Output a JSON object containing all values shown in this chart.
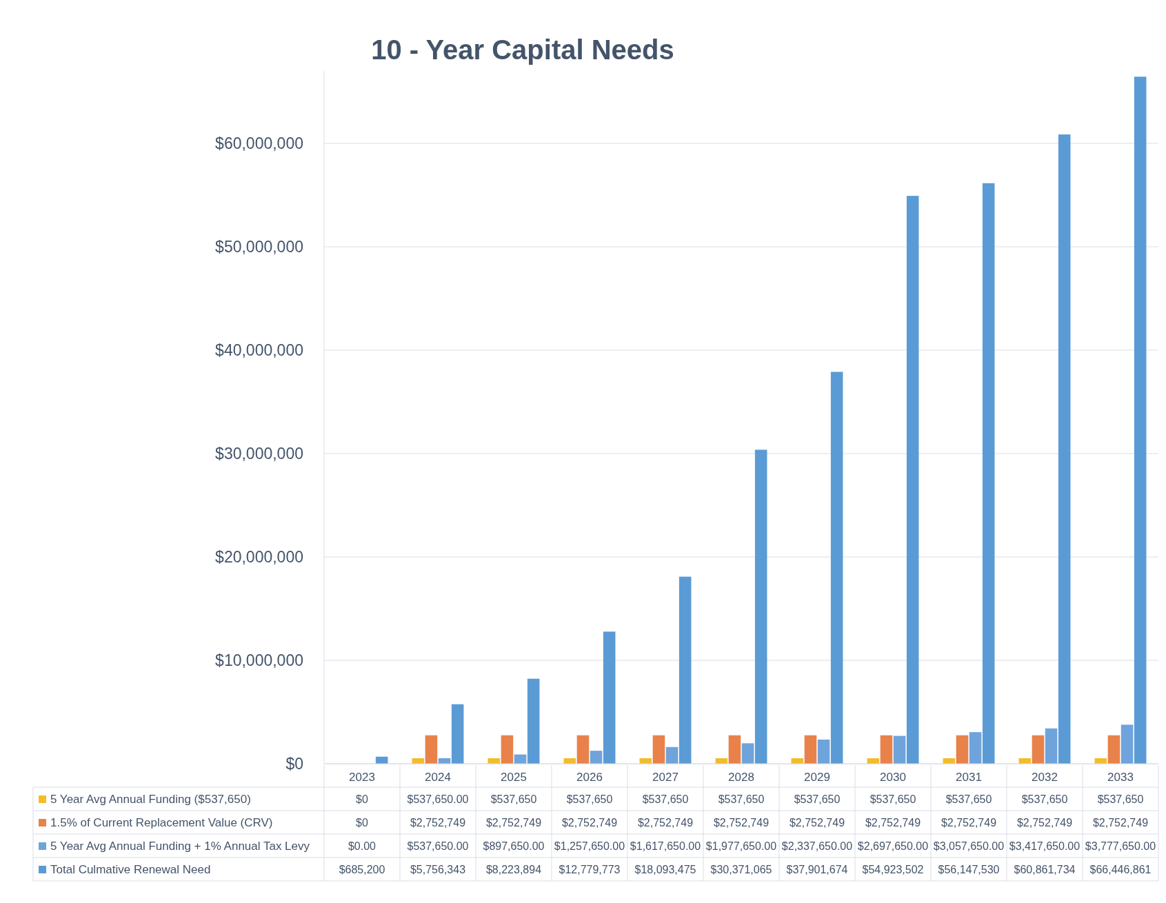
{
  "chart_data": {
    "type": "bar",
    "title": "10 - Year Capital Needs",
    "categories": [
      "2023",
      "2024",
      "2025",
      "2026",
      "2027",
      "2028",
      "2029",
      "2030",
      "2031",
      "2032",
      "2033"
    ],
    "series": [
      {
        "name": "5 Year Avg Annual Funding ($537,650)",
        "color": "#f2bd2c",
        "values": [
          0,
          537650,
          537650,
          537650,
          537650,
          537650,
          537650,
          537650,
          537650,
          537650,
          537650
        ],
        "value_labels": [
          "$0",
          "$537,650.00",
          "$537,650",
          "$537,650",
          "$537,650",
          "$537,650",
          "$537,650",
          "$537,650",
          "$537,650",
          "$537,650",
          "$537,650"
        ]
      },
      {
        "name": "1.5% of Current Replacement Value (CRV)",
        "color": "#e8824a",
        "values": [
          0,
          2752749,
          2752749,
          2752749,
          2752749,
          2752749,
          2752749,
          2752749,
          2752749,
          2752749,
          2752749
        ],
        "value_labels": [
          "$0",
          "$2,752,749",
          "$2,752,749",
          "$2,752,749",
          "$2,752,749",
          "$2,752,749",
          "$2,752,749",
          "$2,752,749",
          "$2,752,749",
          "$2,752,749",
          "$2,752,749"
        ]
      },
      {
        "name": "5 Year Avg Annual Funding + 1% Annual Tax Levy",
        "color": "#6fa3dc",
        "values": [
          0,
          537650,
          897650,
          1257650,
          1617650,
          1977650,
          2337650,
          2697650,
          3057650,
          3417650,
          3777650
        ],
        "value_labels": [
          "$0.00",
          "$537,650.00",
          "$897,650.00",
          "$1,257,650.00",
          "$1,617,650.00",
          "$1,977,650.00",
          "$2,337,650.00",
          "$2,697,650.00",
          "$3,057,650.00",
          "$3,417,650.00",
          "$3,777,650.00"
        ]
      },
      {
        "name": "Total Culmative Renewal Need",
        "color": "#5b9bd5",
        "values": [
          685200,
          5756343,
          8223894,
          12779773,
          18093475,
          30371065,
          37901674,
          54923502,
          56147530,
          60861734,
          66446861
        ],
        "value_labels": [
          "$685,200",
          "$5,756,343",
          "$8,223,894",
          "$12,779,773",
          "$18,093,475",
          "$30,371,065",
          "$37,901,674",
          "$54,923,502",
          "$56,147,530",
          "$60,861,734",
          "$66,446,861"
        ]
      }
    ],
    "ylim": [
      0,
      67000000
    ],
    "yticks": [
      {
        "value": 0,
        "label": "$0"
      },
      {
        "value": 10000000,
        "label": "$10,000,000"
      },
      {
        "value": 20000000,
        "label": "$20,000,000"
      },
      {
        "value": 30000000,
        "label": "$30,000,000"
      },
      {
        "value": 40000000,
        "label": "$40,000,000"
      },
      {
        "value": 50000000,
        "label": "$50,000,000"
      },
      {
        "value": 60000000,
        "label": "$60,000,000"
      }
    ],
    "grid": "y",
    "legend": "bottom"
  }
}
